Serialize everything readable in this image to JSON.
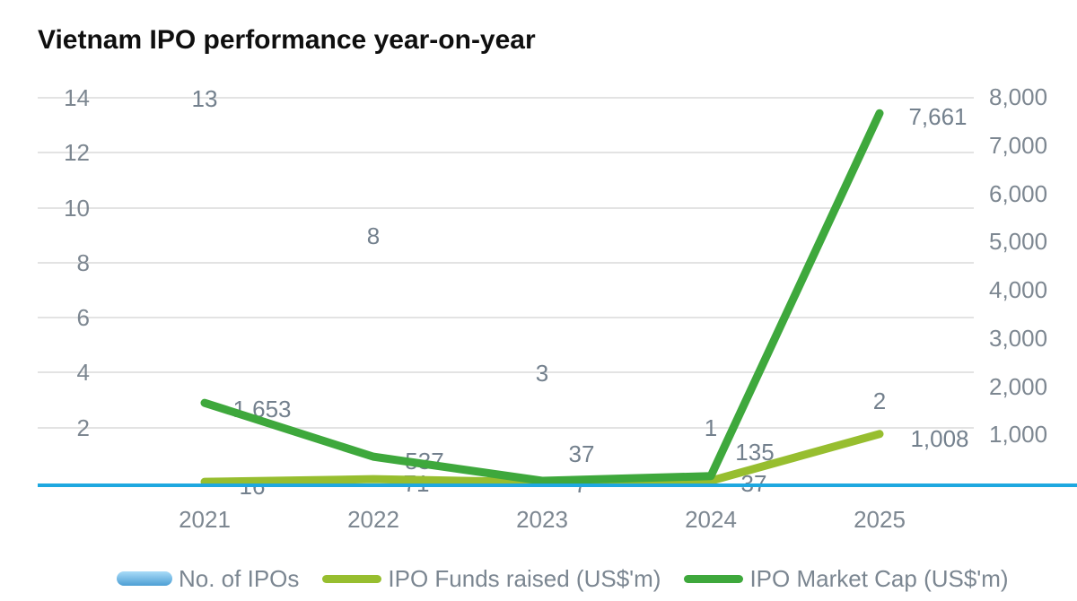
{
  "title": "Vietnam IPO performance year-on-year",
  "colors": {
    "bar_top": "#a9dbf8",
    "bar_bottom": "#4d9fd4",
    "funds_line": "#97be2f",
    "market_cap_line": "#3ea83c",
    "baseline": "#1ea8e0",
    "gridline": "#e3e3e3",
    "tick_text": "#7d8791",
    "label_text": "#73808d",
    "title_text": "#0f0f0f"
  },
  "chart_data": {
    "type": "combo",
    "title": "Vietnam IPO performance year-on-year",
    "categories": [
      "2021",
      "2022",
      "2023",
      "2024",
      "2025"
    ],
    "series": [
      {
        "name": "No. of IPOs",
        "type": "bar",
        "axis": "left",
        "values": [
          13,
          8,
          3,
          1,
          2
        ],
        "labels": [
          "13",
          "8",
          "3",
          "1",
          "2"
        ]
      },
      {
        "name": "IPO Funds raised (US$'m)",
        "type": "line",
        "axis": "right",
        "values": [
          16,
          71,
          7,
          37,
          1008
        ],
        "labels": [
          "16",
          "71",
          "7",
          "37",
          "1,008"
        ]
      },
      {
        "name": "IPO Market Cap (US$'m)",
        "type": "line",
        "axis": "right",
        "values": [
          1653,
          537,
          37,
          135,
          7661
        ],
        "labels": [
          "1,653",
          "537",
          "37",
          "135",
          "7,661"
        ]
      }
    ],
    "left_axis": {
      "min": 0,
      "max": 14,
      "ticks": [
        2,
        4,
        6,
        8,
        10,
        12,
        14
      ],
      "tick_labels": [
        "2",
        "4",
        "6",
        "8",
        "10",
        "12",
        "14"
      ]
    },
    "right_axis": {
      "min": 0,
      "max": 8000,
      "ticks": [
        1000,
        2000,
        3000,
        4000,
        5000,
        6000,
        7000,
        8000
      ],
      "tick_labels": [
        "1,000",
        "2,000",
        "3,000",
        "4,000",
        "5,000",
        "6,000",
        "7,000",
        "8,000"
      ]
    },
    "grid": true,
    "legend_position": "bottom",
    "legend": [
      {
        "label": "No. of IPOs",
        "swatch": "bar"
      },
      {
        "label": "IPO Funds raised (US$'m)",
        "swatch": "line"
      },
      {
        "label": "IPO Market Cap (US$'m)",
        "swatch": "line"
      }
    ]
  }
}
